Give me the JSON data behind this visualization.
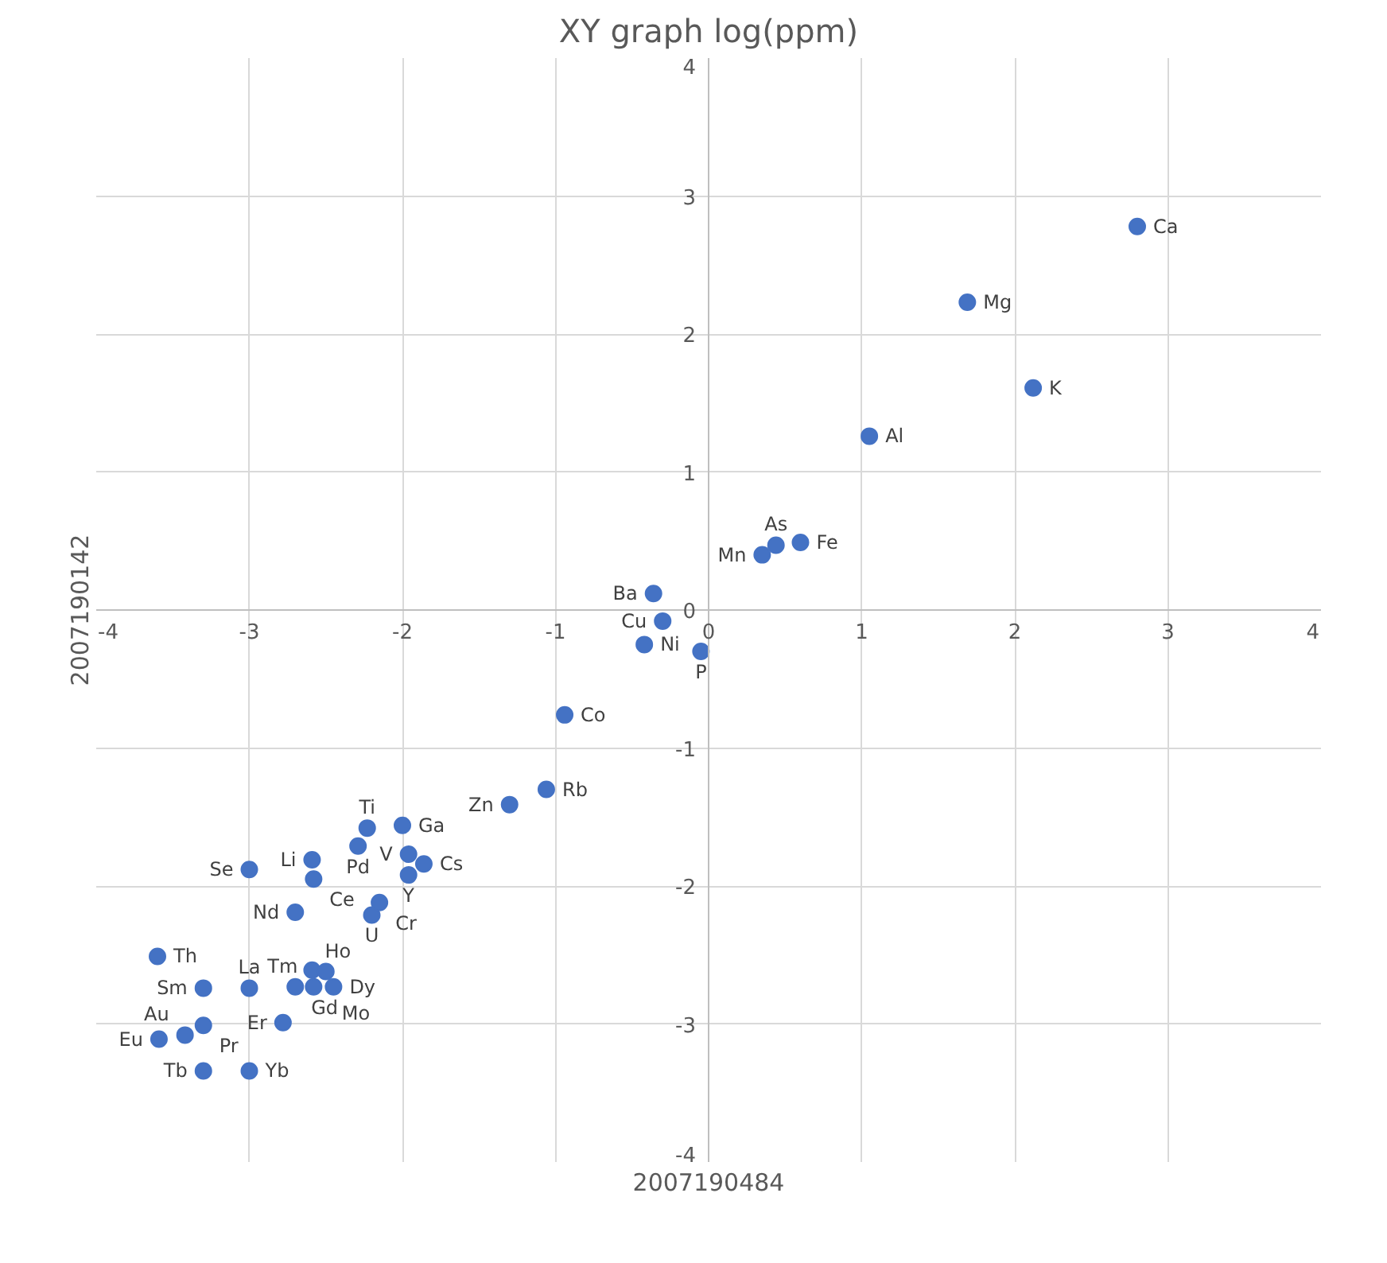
{
  "chart_data": {
    "type": "scatter",
    "title": "XY graph log(ppm)",
    "xlabel": "2007190484",
    "ylabel": "2007190142",
    "xlim": [
      -4,
      4
    ],
    "ylim": [
      -4,
      4
    ],
    "xticks": [
      -4,
      -3,
      -2,
      -1,
      0,
      1,
      2,
      3,
      4
    ],
    "yticks": [
      -4,
      -3,
      -2,
      -1,
      0,
      1,
      2,
      3,
      4
    ],
    "grid": true,
    "marker": "circle",
    "series": [
      {
        "color": "#4472c4",
        "x": [
          2.8,
          1.69,
          2.12,
          1.05,
          0.35,
          0.44,
          0.6,
          -0.36,
          -0.3,
          -0.42,
          -0.05,
          -0.94,
          -1.06,
          -1.3,
          -2.23,
          -2.0,
          -2.29,
          -1.96,
          -1.86,
          -1.96,
          -2.59,
          -2.58,
          -3.0,
          -2.7,
          -2.2,
          -2.15,
          -3.6,
          -3.3,
          -3.0,
          -2.7,
          -2.58,
          -2.45,
          -2.59,
          -2.5,
          -2.78,
          -3.59,
          -3.42,
          -3.3,
          -3.3,
          -3.0
        ],
        "values": [
          2.78,
          2.23,
          1.61,
          1.26,
          0.4,
          0.47,
          0.49,
          0.12,
          -0.08,
          -0.25,
          -0.3,
          -0.76,
          -1.3,
          -1.41,
          -1.58,
          -1.56,
          -1.71,
          -1.77,
          -1.84,
          -1.92,
          -1.81,
          -1.95,
          -1.88,
          -2.19,
          -2.21,
          -2.12,
          -2.51,
          -2.74,
          -2.74,
          -2.73,
          -2.73,
          -2.73,
          -2.61,
          -2.62,
          -2.99,
          -3.11,
          -3.08,
          -3.01,
          -3.34,
          -3.34
        ]
      }
    ],
    "annotations": [
      {
        "text": "Ca",
        "x": 2.8,
        "y": 2.78
      },
      {
        "text": "Mg",
        "x": 1.69,
        "y": 2.23
      },
      {
        "text": "K",
        "x": 2.12,
        "y": 1.61
      },
      {
        "text": "Al",
        "x": 1.05,
        "y": 1.26
      },
      {
        "text": "Mn",
        "x": 0.35,
        "y": 0.4
      },
      {
        "text": "As",
        "x": 0.44,
        "y": 0.47
      },
      {
        "text": "Fe",
        "x": 0.6,
        "y": 0.49
      },
      {
        "text": "Ba",
        "x": -0.36,
        "y": 0.12
      },
      {
        "text": "Cu",
        "x": -0.3,
        "y": -0.08
      },
      {
        "text": "Ni",
        "x": -0.42,
        "y": -0.25
      },
      {
        "text": "P",
        "x": -0.05,
        "y": -0.3
      },
      {
        "text": "Co",
        "x": -0.94,
        "y": -0.76
      },
      {
        "text": "Rb",
        "x": -1.06,
        "y": -1.3
      },
      {
        "text": "Zn",
        "x": -1.3,
        "y": -1.41
      },
      {
        "text": "Ti",
        "x": -2.23,
        "y": -1.58
      },
      {
        "text": "Ga",
        "x": -2.0,
        "y": -1.56
      },
      {
        "text": "Pd",
        "x": -2.29,
        "y": -1.71
      },
      {
        "text": "V",
        "x": -1.96,
        "y": -1.77
      },
      {
        "text": "Cs",
        "x": -1.86,
        "y": -1.84
      },
      {
        "text": "Y",
        "x": -1.96,
        "y": -1.92
      },
      {
        "text": "Li",
        "x": -2.59,
        "y": -1.81
      },
      {
        "text": "Ce",
        "x": -2.58,
        "y": -1.95
      },
      {
        "text": "Se",
        "x": -3.0,
        "y": -1.88
      },
      {
        "text": "Nd",
        "x": -2.7,
        "y": -2.19
      },
      {
        "text": "U",
        "x": -2.2,
        "y": -2.21
      },
      {
        "text": "Cr",
        "x": -2.15,
        "y": -2.12
      },
      {
        "text": "Th",
        "x": -3.6,
        "y": -2.51
      },
      {
        "text": "Sm",
        "x": -3.3,
        "y": -2.74
      },
      {
        "text": "La",
        "x": -3.0,
        "y": -2.74
      },
      {
        "text": "Gd",
        "x": -2.7,
        "y": -2.73
      },
      {
        "text": "Tm",
        "x": -2.58,
        "y": -2.73
      },
      {
        "text": "Dy",
        "x": -2.45,
        "y": -2.73
      },
      {
        "text": "Ho",
        "x": -2.59,
        "y": -2.61
      },
      {
        "text": "Mo",
        "x": -2.5,
        "y": -2.62
      },
      {
        "text": "Er",
        "x": -2.78,
        "y": -2.99
      },
      {
        "text": "Eu",
        "x": -3.59,
        "y": -3.11
      },
      {
        "text": "Au",
        "x": -3.42,
        "y": -3.08
      },
      {
        "text": "Pr",
        "x": -3.3,
        "y": -3.01
      },
      {
        "text": "Tb",
        "x": -3.3,
        "y": -3.34
      },
      {
        "text": "Yb",
        "x": -3.0,
        "y": -3.34
      }
    ]
  }
}
